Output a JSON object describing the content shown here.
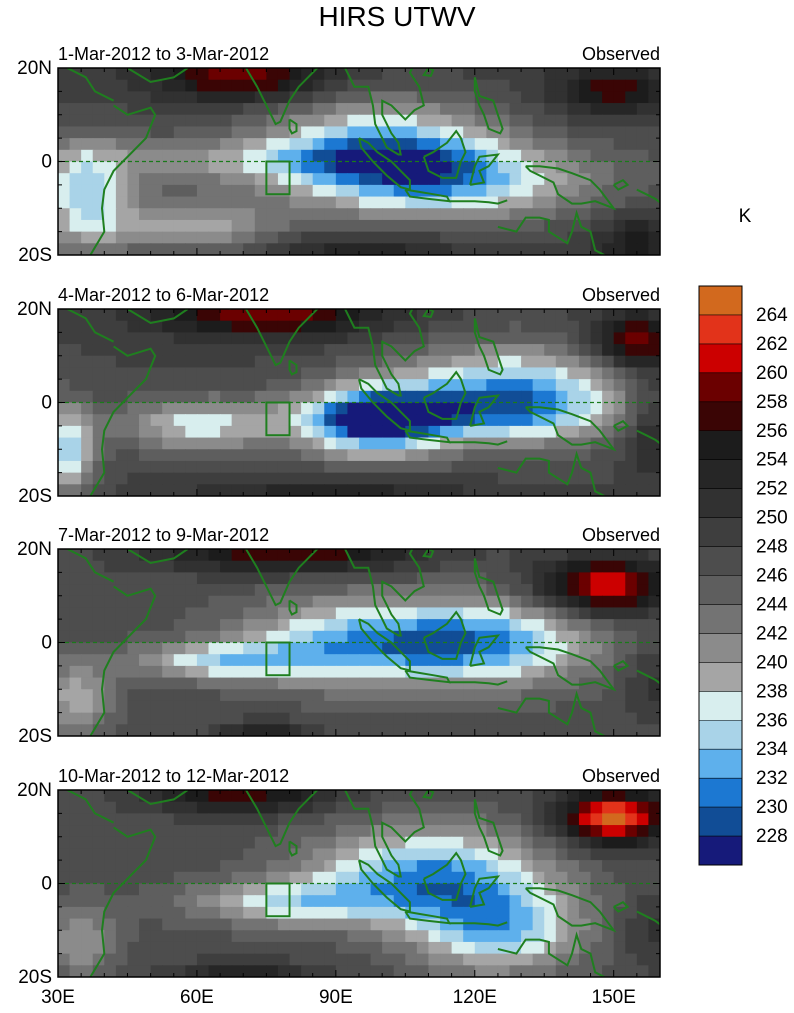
{
  "title": "HIRS UTWV",
  "chart_data": {
    "type": "heatmap",
    "variable_unit": "K",
    "x_ticks": [
      "30E",
      "60E",
      "90E",
      "120E",
      "150E"
    ],
    "x_tick_values": [
      30,
      60,
      90,
      120,
      150
    ],
    "y_ticks": [
      "20N",
      "0",
      "20S"
    ],
    "y_tick_values": [
      20,
      0,
      -20
    ],
    "xlim": [
      30,
      160
    ],
    "ylim": [
      -20,
      20
    ],
    "panels": [
      {
        "period": "1-Mar-2012 to 3-Mar-2012",
        "label": "Observed"
      },
      {
        "period": "4-Mar-2012 to 6-Mar-2012",
        "label": "Observed"
      },
      {
        "period": "7-Mar-2012 to 9-Mar-2012",
        "label": "Observed"
      },
      {
        "period": "10-Mar-2012 to 12-Mar-2012",
        "label": "Observed"
      }
    ],
    "colorbar": {
      "label": "K",
      "levels": [
        "264",
        "262",
        "260",
        "258",
        "256",
        "254",
        "252",
        "250",
        "248",
        "246",
        "244",
        "242",
        "240",
        "238",
        "236",
        "234",
        "232",
        "230",
        "228"
      ],
      "colors": [
        "#d2691e",
        "#e2331a",
        "#cc0000",
        "#6b0000",
        "#3a0505",
        "#1c1c1c",
        "#262626",
        "#313131",
        "#3e3e3e",
        "#4d4d4d",
        "#5e5e5e",
        "#737373",
        "#8b8b8b",
        "#a5a5a5",
        "#d8eeee",
        "#a9d3e8",
        "#5eb0ec",
        "#1c78d2",
        "#114d96",
        "#161a7a"
      ]
    }
  }
}
